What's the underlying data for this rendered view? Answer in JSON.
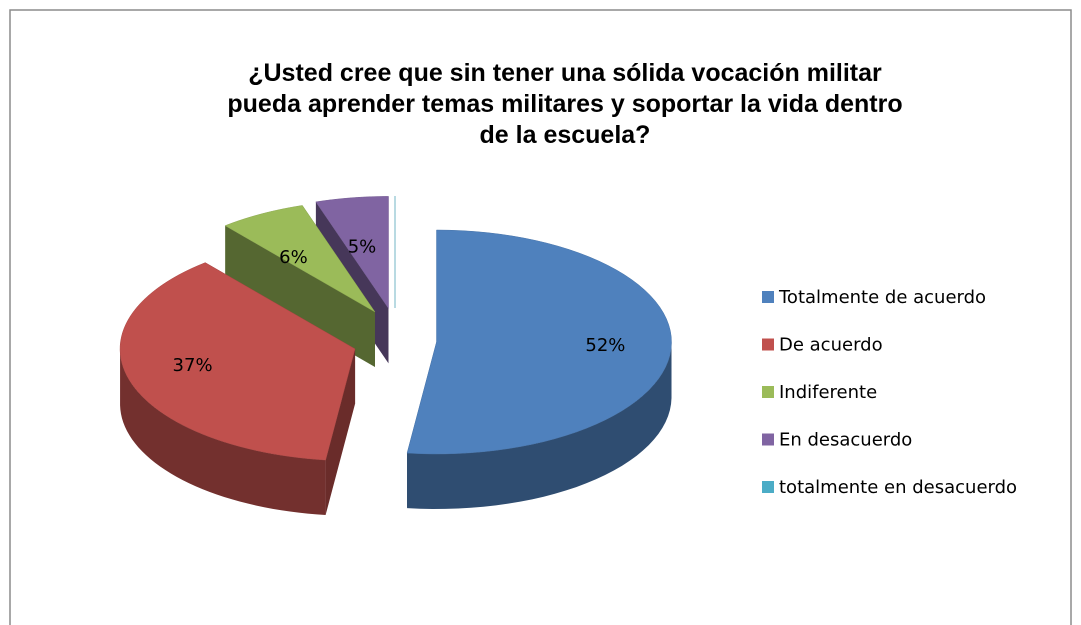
{
  "chart_data": {
    "type": "pie3d",
    "title": "¿Usted cree que sin tener una sólida vocación militar pueda aprender temas militares y soportar la vida dentro de la escuela?",
    "categories": [
      "Totalmente de acuerdo",
      "De acuerdo",
      "Indiferente",
      "En desacuerdo",
      "totalmente en desacuerdo"
    ],
    "values": [
      52,
      37,
      6,
      5,
      0
    ],
    "value_labels": [
      "52%",
      "37%",
      "6%",
      "5%",
      null
    ],
    "colors": [
      "#4f81bd",
      "#c0504d",
      "#9bbb59",
      "#8064a2",
      "#4bacc6"
    ],
    "legend": "right"
  }
}
